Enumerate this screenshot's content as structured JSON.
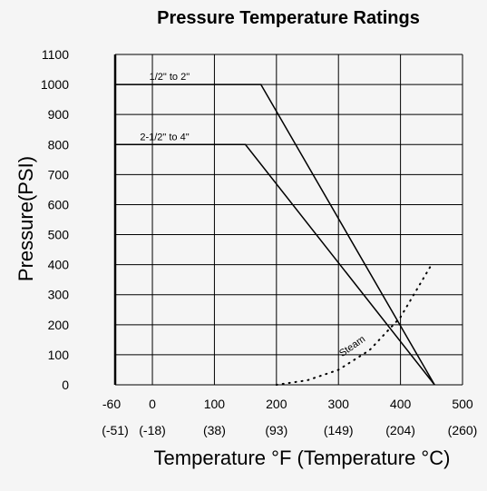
{
  "chart_data": {
    "type": "line",
    "title": "Pressure Temperature Ratings",
    "ylabel": "Pressure(PSI)",
    "xlabel": "Temperature °F (Temperature °C)",
    "xlim": [
      -60,
      500
    ],
    "ylim": [
      0,
      1100
    ],
    "grid": true,
    "x_ticks": [
      {
        "f": "-60",
        "c": "(-51)",
        "value": -60
      },
      {
        "f": "0",
        "c": "(-18)",
        "value": 0
      },
      {
        "f": "100",
        "c": "(38)",
        "value": 100
      },
      {
        "f": "200",
        "c": "(93)",
        "value": 200
      },
      {
        "f": "300",
        "c": "(149)",
        "value": 300
      },
      {
        "f": "400",
        "c": "(204)",
        "value": 400
      },
      {
        "f": "500",
        "c": "(260)",
        "value": 500
      }
    ],
    "y_ticks": [
      0,
      100,
      200,
      300,
      400,
      500,
      600,
      700,
      800,
      900,
      1000,
      1100
    ],
    "series": [
      {
        "name": "1/2\" to 2\"",
        "style": "solid",
        "color": "#000000",
        "x": [
          -60,
          175,
          455
        ],
        "y": [
          1000,
          1000,
          0
        ]
      },
      {
        "name": "2-1/2\" to 4\"",
        "style": "solid",
        "color": "#000000",
        "x": [
          -60,
          150,
          455
        ],
        "y": [
          800,
          800,
          0
        ]
      },
      {
        "name": "Steam",
        "style": "dotted",
        "color": "#000000",
        "x": [
          200,
          250,
          300,
          350,
          400,
          450
        ],
        "y": [
          0,
          15,
          50,
          115,
          225,
          400
        ]
      }
    ]
  }
}
